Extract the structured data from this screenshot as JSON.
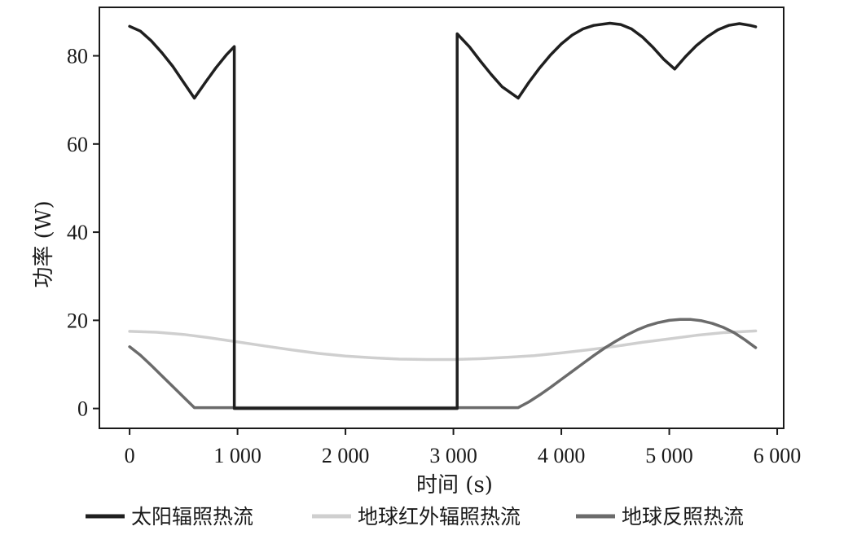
{
  "chart_data": {
    "type": "line",
    "xlabel": "时间 (s)",
    "ylabel": "功率 (W)",
    "xlim": [
      -280,
      6060
    ],
    "ylim": [
      -4.5,
      91
    ],
    "x_ticks": [
      0,
      1000,
      2000,
      3000,
      4000,
      5000,
      6000
    ],
    "x_tick_labels": [
      "0",
      "1 000",
      "2 000",
      "3 000",
      "4 000",
      "5 000",
      "6 000"
    ],
    "y_ticks": [
      0,
      20,
      40,
      60,
      80
    ],
    "y_tick_labels": [
      "0",
      "20",
      "40",
      "60",
      "80"
    ],
    "grid": false,
    "legend_position": "bottom",
    "series": [
      {
        "name": "太阳辐照热流",
        "color": "#1f1f1f",
        "points": [
          [
            0,
            86.7
          ],
          [
            100,
            85.6
          ],
          [
            200,
            83.4
          ],
          [
            300,
            80.7
          ],
          [
            400,
            77.6
          ],
          [
            500,
            74.0
          ],
          [
            600,
            70.4
          ],
          [
            700,
            73.9
          ],
          [
            800,
            77.3
          ],
          [
            900,
            80.3
          ],
          [
            970,
            82.1
          ],
          [
            970,
            0
          ],
          [
            3035,
            0
          ],
          [
            3035,
            85.0
          ],
          [
            3150,
            82.0
          ],
          [
            3250,
            78.8
          ],
          [
            3350,
            75.8
          ],
          [
            3450,
            73.0
          ],
          [
            3600,
            70.4
          ],
          [
            3700,
            74.0
          ],
          [
            3800,
            77.3
          ],
          [
            3900,
            80.2
          ],
          [
            4000,
            82.7
          ],
          [
            4100,
            84.7
          ],
          [
            4200,
            86.1
          ],
          [
            4300,
            86.9
          ],
          [
            4450,
            87.4
          ],
          [
            4550,
            87.1
          ],
          [
            4650,
            86.1
          ],
          [
            4750,
            84.3
          ],
          [
            4850,
            81.9
          ],
          [
            4950,
            79.2
          ],
          [
            5050,
            77.0
          ],
          [
            5150,
            79.8
          ],
          [
            5250,
            82.3
          ],
          [
            5350,
            84.3
          ],
          [
            5450,
            85.9
          ],
          [
            5550,
            86.9
          ],
          [
            5650,
            87.3
          ],
          [
            5750,
            86.9
          ],
          [
            5800,
            86.6
          ]
        ]
      },
      {
        "name": "地球红外辐照热流",
        "color": "#cfcfcf",
        "points": [
          [
            0,
            17.5
          ],
          [
            250,
            17.3
          ],
          [
            500,
            16.8
          ],
          [
            750,
            16.0
          ],
          [
            1000,
            15.1
          ],
          [
            1250,
            14.2
          ],
          [
            1500,
            13.3
          ],
          [
            1750,
            12.5
          ],
          [
            2000,
            11.9
          ],
          [
            2250,
            11.5
          ],
          [
            2500,
            11.2
          ],
          [
            2750,
            11.1
          ],
          [
            3000,
            11.1
          ],
          [
            3250,
            11.3
          ],
          [
            3500,
            11.6
          ],
          [
            3750,
            12.0
          ],
          [
            4000,
            12.6
          ],
          [
            4250,
            13.3
          ],
          [
            4500,
            14.1
          ],
          [
            4750,
            15.0
          ],
          [
            5000,
            15.8
          ],
          [
            5250,
            16.6
          ],
          [
            5500,
            17.2
          ],
          [
            5800,
            17.6
          ]
        ]
      },
      {
        "name": "地球反照热流",
        "color": "#6b6b6b",
        "points": [
          [
            0,
            14.0
          ],
          [
            100,
            12.1
          ],
          [
            200,
            9.8
          ],
          [
            300,
            7.4
          ],
          [
            400,
            5.0
          ],
          [
            500,
            2.6
          ],
          [
            600,
            0.2
          ],
          [
            2000,
            0.2
          ],
          [
            3000,
            0.2
          ],
          [
            3600,
            0.2
          ],
          [
            3700,
            1.5
          ],
          [
            3800,
            3.1
          ],
          [
            3900,
            4.8
          ],
          [
            4000,
            6.6
          ],
          [
            4100,
            8.4
          ],
          [
            4200,
            10.2
          ],
          [
            4300,
            12.0
          ],
          [
            4400,
            13.7
          ],
          [
            4500,
            15.2
          ],
          [
            4600,
            16.6
          ],
          [
            4700,
            17.8
          ],
          [
            4800,
            18.8
          ],
          [
            4900,
            19.5
          ],
          [
            5000,
            20.0
          ],
          [
            5100,
            20.2
          ],
          [
            5200,
            20.2
          ],
          [
            5300,
            19.9
          ],
          [
            5400,
            19.3
          ],
          [
            5500,
            18.4
          ],
          [
            5600,
            17.2
          ],
          [
            5700,
            15.6
          ],
          [
            5800,
            13.8
          ]
        ]
      }
    ]
  }
}
